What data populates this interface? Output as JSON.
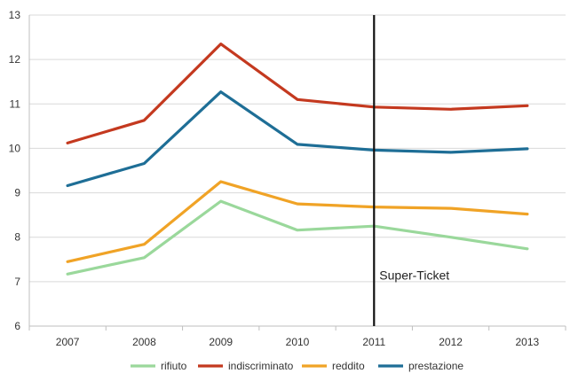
{
  "chart_data": {
    "type": "line",
    "title": "",
    "xlabel": "",
    "ylabel": "",
    "x": [
      "2007",
      "2008",
      "2009",
      "2010",
      "2011",
      "2012",
      "2013"
    ],
    "ylim": [
      6,
      13
    ],
    "yticks": [
      6,
      7,
      8,
      9,
      10,
      11,
      12,
      13
    ],
    "grid": "horizontal",
    "legend": "bottom",
    "series": [
      {
        "name": "rifiuto",
        "color": "#9ad89b",
        "values": [
          7.17,
          7.54,
          8.81,
          8.16,
          8.25,
          8.0,
          7.74
        ]
      },
      {
        "name": "indiscriminato",
        "color": "#c4391f",
        "values": [
          10.12,
          10.63,
          12.35,
          11.1,
          10.93,
          10.88,
          10.96
        ]
      },
      {
        "name": "reddito",
        "color": "#f0a326",
        "values": [
          7.45,
          7.84,
          9.25,
          8.75,
          8.68,
          8.65,
          8.52
        ]
      },
      {
        "name": "prestazione",
        "color": "#1e6e96",
        "values": [
          9.16,
          9.66,
          11.27,
          10.09,
          9.96,
          9.91,
          9.99
        ]
      }
    ],
    "annotations": [
      {
        "text": "Super-Ticket",
        "x": "2011"
      }
    ]
  }
}
